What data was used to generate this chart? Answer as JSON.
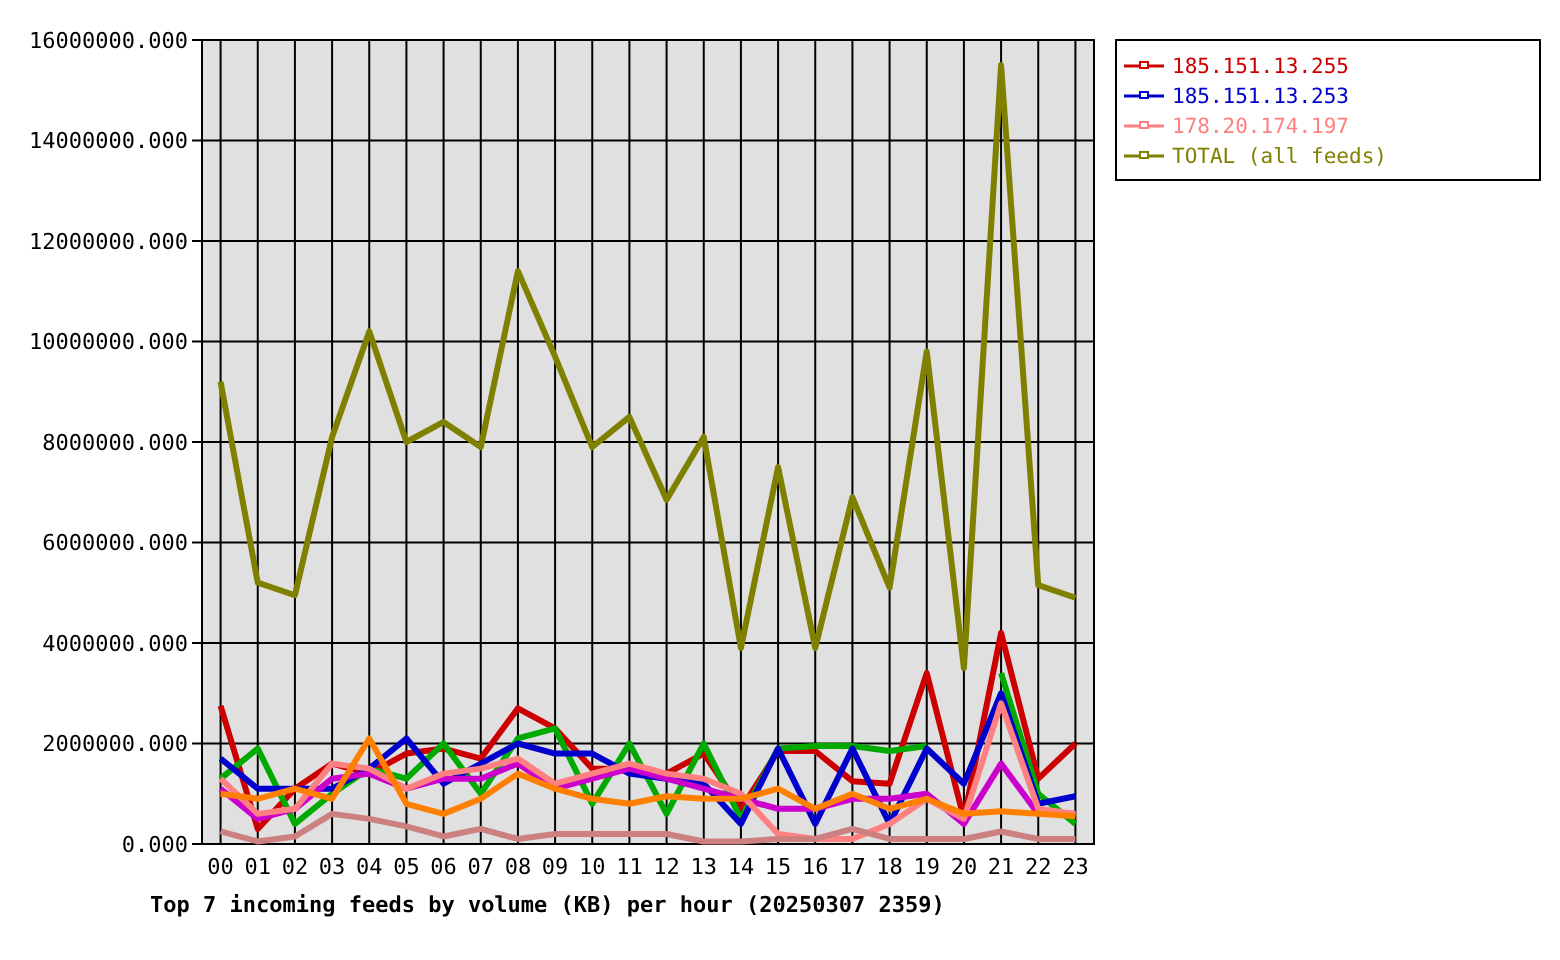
{
  "chart_data": {
    "type": "line",
    "xlabel": "Top 7 incoming feeds by volume (KB) per hour (20250307 2359)",
    "categories": [
      "00",
      "01",
      "02",
      "03",
      "04",
      "05",
      "06",
      "07",
      "08",
      "09",
      "10",
      "11",
      "12",
      "13",
      "14",
      "15",
      "16",
      "17",
      "18",
      "19",
      "20",
      "21",
      "22",
      "23"
    ],
    "ylim": [
      0,
      16000000
    ],
    "yticks": [
      {
        "value": 0,
        "label": "0.000"
      },
      {
        "value": 2000000,
        "label": "2000000.000"
      },
      {
        "value": 4000000,
        "label": "4000000.000"
      },
      {
        "value": 6000000,
        "label": "6000000.000"
      },
      {
        "value": 8000000,
        "label": "8000000.000"
      },
      {
        "value": 10000000,
        "label": "10000000.000"
      },
      {
        "value": 12000000,
        "label": "12000000.000"
      },
      {
        "value": 14000000,
        "label": "14000000.000"
      },
      {
        "value": 16000000,
        "label": "16000000.000"
      }
    ],
    "grid": true,
    "legend": "right",
    "series": [
      {
        "name": "185.151.13.255",
        "color": "#cc0000",
        "values": [
          2750000,
          300000,
          1100000,
          1600000,
          1400000,
          1800000,
          1900000,
          1700000,
          2700000,
          2300000,
          1500000,
          1500000,
          1400000,
          1800000,
          700000,
          1850000,
          1850000,
          1250000,
          1200000,
          3400000,
          500000,
          4200000,
          1300000,
          2000000
        ]
      },
      {
        "color": "#00aa00",
        "values": [
          1300000,
          1900000,
          400000,
          1000000,
          1500000,
          1300000,
          2000000,
          1000000,
          2100000,
          2300000,
          800000,
          2000000,
          600000,
          2000000,
          500000,
          1900000,
          1950000,
          1950000,
          1850000,
          1950000,
          null,
          3400000,
          1000000,
          400000
        ]
      },
      {
        "name": "185.151.13.253",
        "color": "#0000cc",
        "values": [
          1700000,
          1100000,
          1100000,
          1100000,
          1500000,
          2100000,
          1200000,
          1600000,
          2000000,
          1800000,
          1800000,
          1400000,
          1300000,
          1200000,
          400000,
          1900000,
          400000,
          1900000,
          400000,
          1900000,
          1200000,
          3000000,
          800000,
          950000
        ]
      },
      {
        "color": "#cc00cc",
        "values": [
          1100000,
          500000,
          700000,
          1300000,
          1400000,
          1100000,
          1300000,
          1300000,
          1600000,
          1100000,
          1300000,
          1500000,
          1300000,
          1100000,
          900000,
          700000,
          700000,
          900000,
          900000,
          1000000,
          400000,
          1600000,
          600000,
          600000
        ]
      },
      {
        "name": "178.20.174.197",
        "color": "#ff8080",
        "values": [
          1300000,
          600000,
          700000,
          1600000,
          1500000,
          1100000,
          1400000,
          1500000,
          1700000,
          1200000,
          1400000,
          1600000,
          1400000,
          1300000,
          1000000,
          200000,
          100000,
          100000,
          400000,
          900000,
          500000,
          2800000,
          700000,
          600000
        ]
      },
      {
        "color": "#ff8000",
        "values": [
          1000000,
          900000,
          1100000,
          900000,
          2100000,
          800000,
          600000,
          900000,
          1400000,
          1100000,
          900000,
          800000,
          950000,
          900000,
          900000,
          1100000,
          700000,
          1000000,
          700000,
          900000,
          600000,
          650000,
          600000,
          550000
        ]
      },
      {
        "color": "#cc8080",
        "values": [
          250000,
          50000,
          150000,
          600000,
          500000,
          350000,
          150000,
          300000,
          100000,
          200000,
          200000,
          200000,
          200000,
          50000,
          50000,
          100000,
          100000,
          300000,
          100000,
          100000,
          100000,
          250000,
          100000,
          100000
        ]
      },
      {
        "name": "TOTAL (all feeds)",
        "color": "#808000",
        "values": [
          9200000,
          5200000,
          4950000,
          8100000,
          10200000,
          8000000,
          8400000,
          7900000,
          11400000,
          9700000,
          7900000,
          8500000,
          6850000,
          8100000,
          3900000,
          7500000,
          3900000,
          6900000,
          5100000,
          9800000,
          3500000,
          15500000,
          5150000,
          4900000
        ]
      }
    ]
  }
}
